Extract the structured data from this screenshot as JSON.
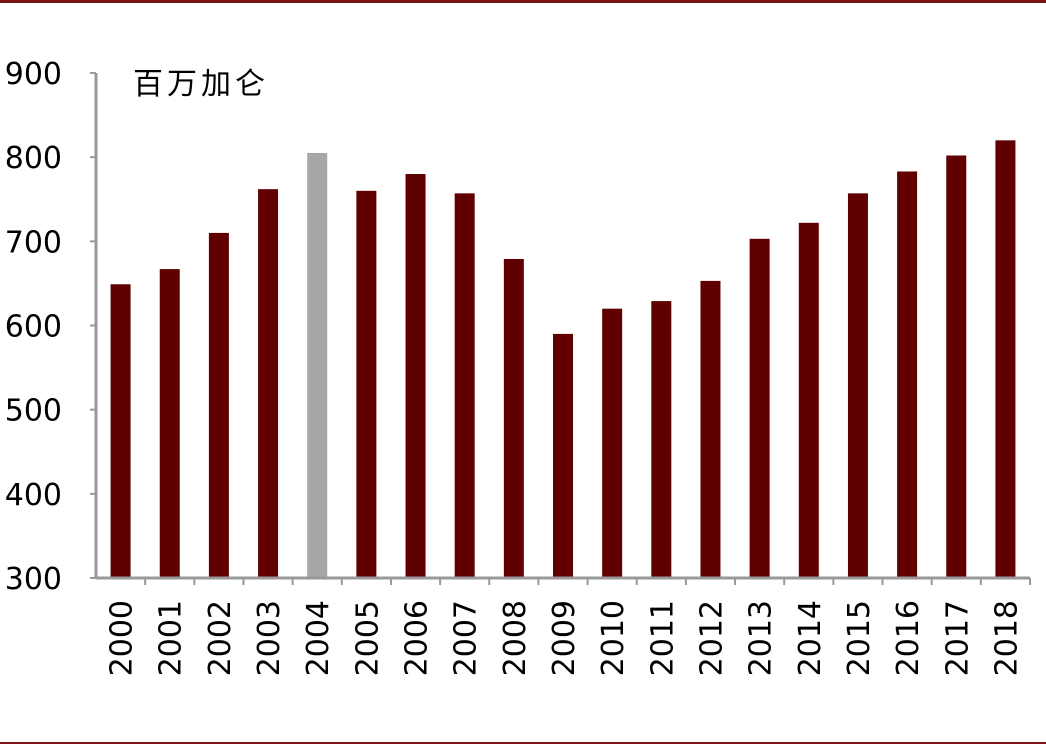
{
  "colors": {
    "bar": "#600000",
    "highlight": "#a6a6a6",
    "axis": "#999999",
    "rule": "#7a1515"
  },
  "chart_data": {
    "type": "bar",
    "unit": "百万加仑",
    "categories": [
      "2000",
      "2001",
      "2002",
      "2003",
      "2004",
      "2005",
      "2006",
      "2007",
      "2008",
      "2009",
      "2010",
      "2011",
      "2012",
      "2013",
      "2014",
      "2015",
      "2016",
      "2017",
      "2018"
    ],
    "values": [
      649,
      667,
      710,
      762,
      805,
      760,
      780,
      757,
      679,
      590,
      620,
      629,
      653,
      703,
      722,
      757,
      783,
      802,
      820
    ],
    "highlight_category": "2004",
    "ylim": [
      300,
      900
    ],
    "yticks": [
      300,
      400,
      500,
      600,
      700,
      800,
      900
    ],
    "ytick_labels": [
      "300",
      "400",
      "500",
      "600",
      "700",
      "800",
      "900"
    ],
    "grid": false
  }
}
